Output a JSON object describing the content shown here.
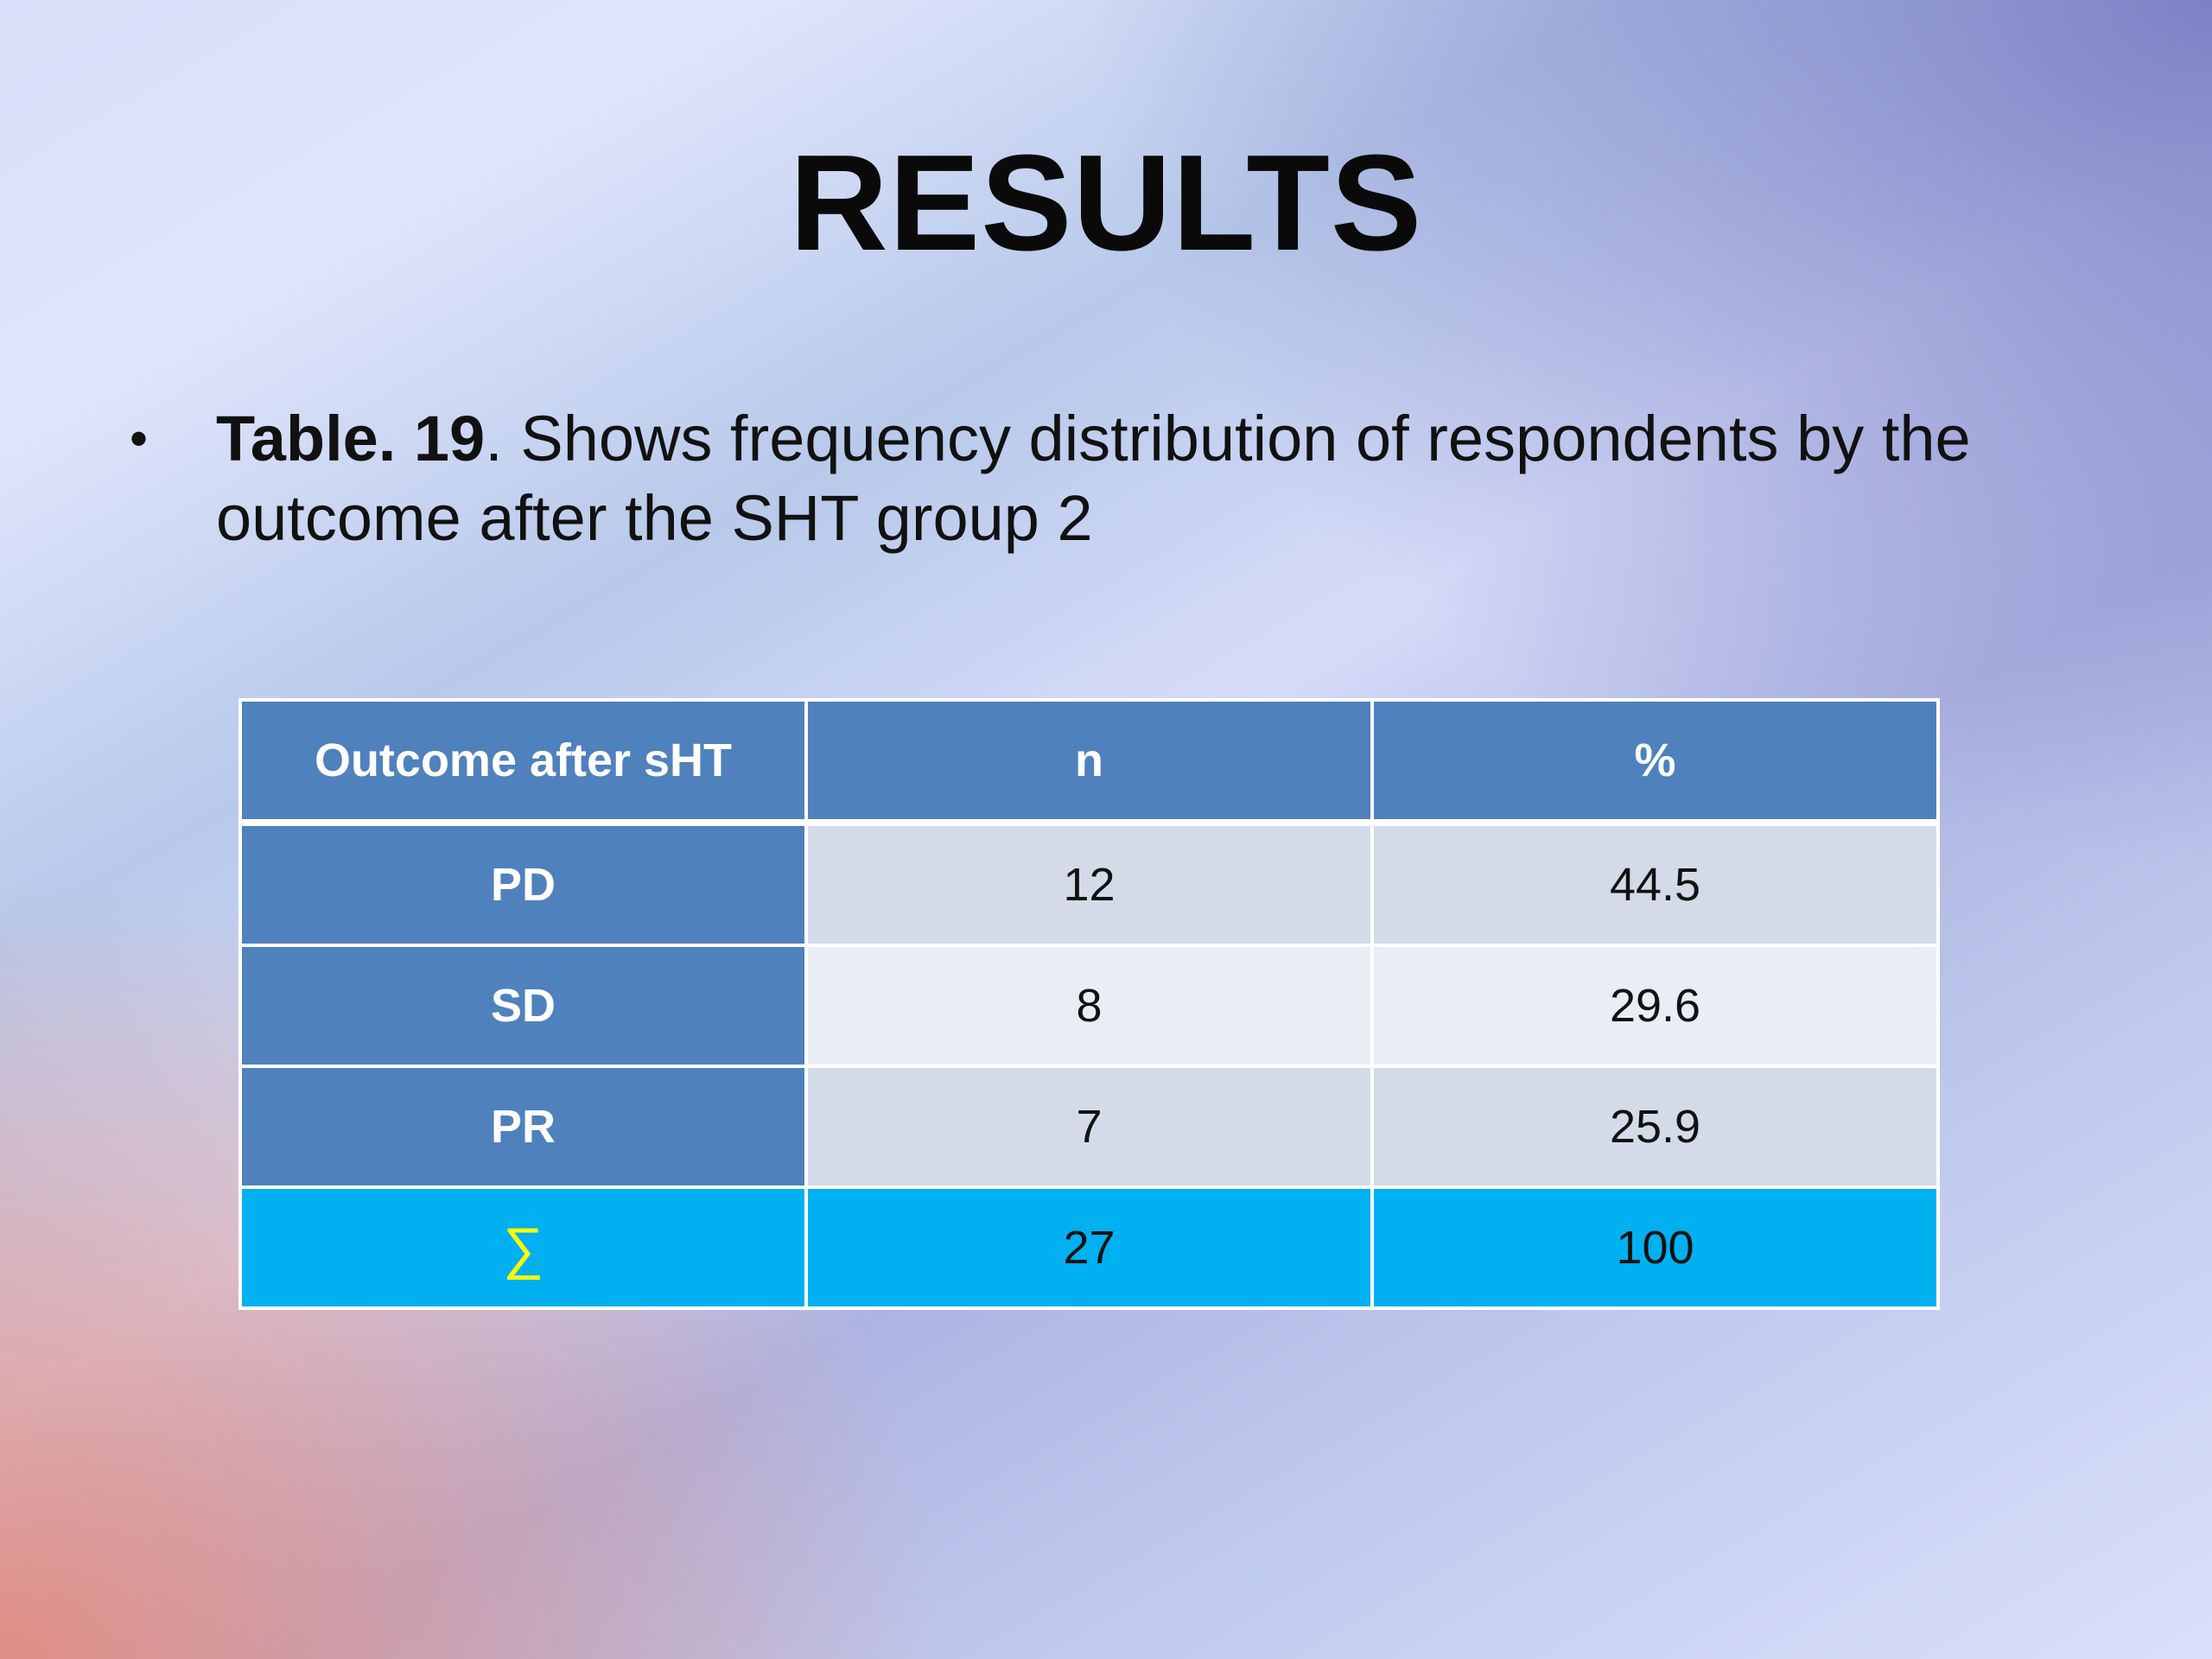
{
  "slide": {
    "title": "RESULTS",
    "bullet": {
      "marker": "•",
      "bold_prefix": "Table. 19",
      "text": ". Shows frequency distribution of respondents by the outcome after the SHT group 2"
    }
  },
  "table": {
    "headers": [
      "Outcome after sHT",
      "n",
      "%"
    ],
    "rows": [
      {
        "outcome": "PD",
        "n": "12",
        "pct": "44.5"
      },
      {
        "outcome": "SD",
        "n": "8",
        "pct": "29.6"
      },
      {
        "outcome": "PR",
        "n": "7",
        "pct": "25.9"
      }
    ],
    "total": {
      "label": "∑",
      "n": "27",
      "pct": "100"
    }
  },
  "colors": {
    "header_fill": "#4f81bd",
    "row_odd_fill": "#d3dbe9",
    "row_even_fill": "#e9edf5",
    "total_fill": "#00b0f0",
    "sigma_color": "#ffff00"
  }
}
